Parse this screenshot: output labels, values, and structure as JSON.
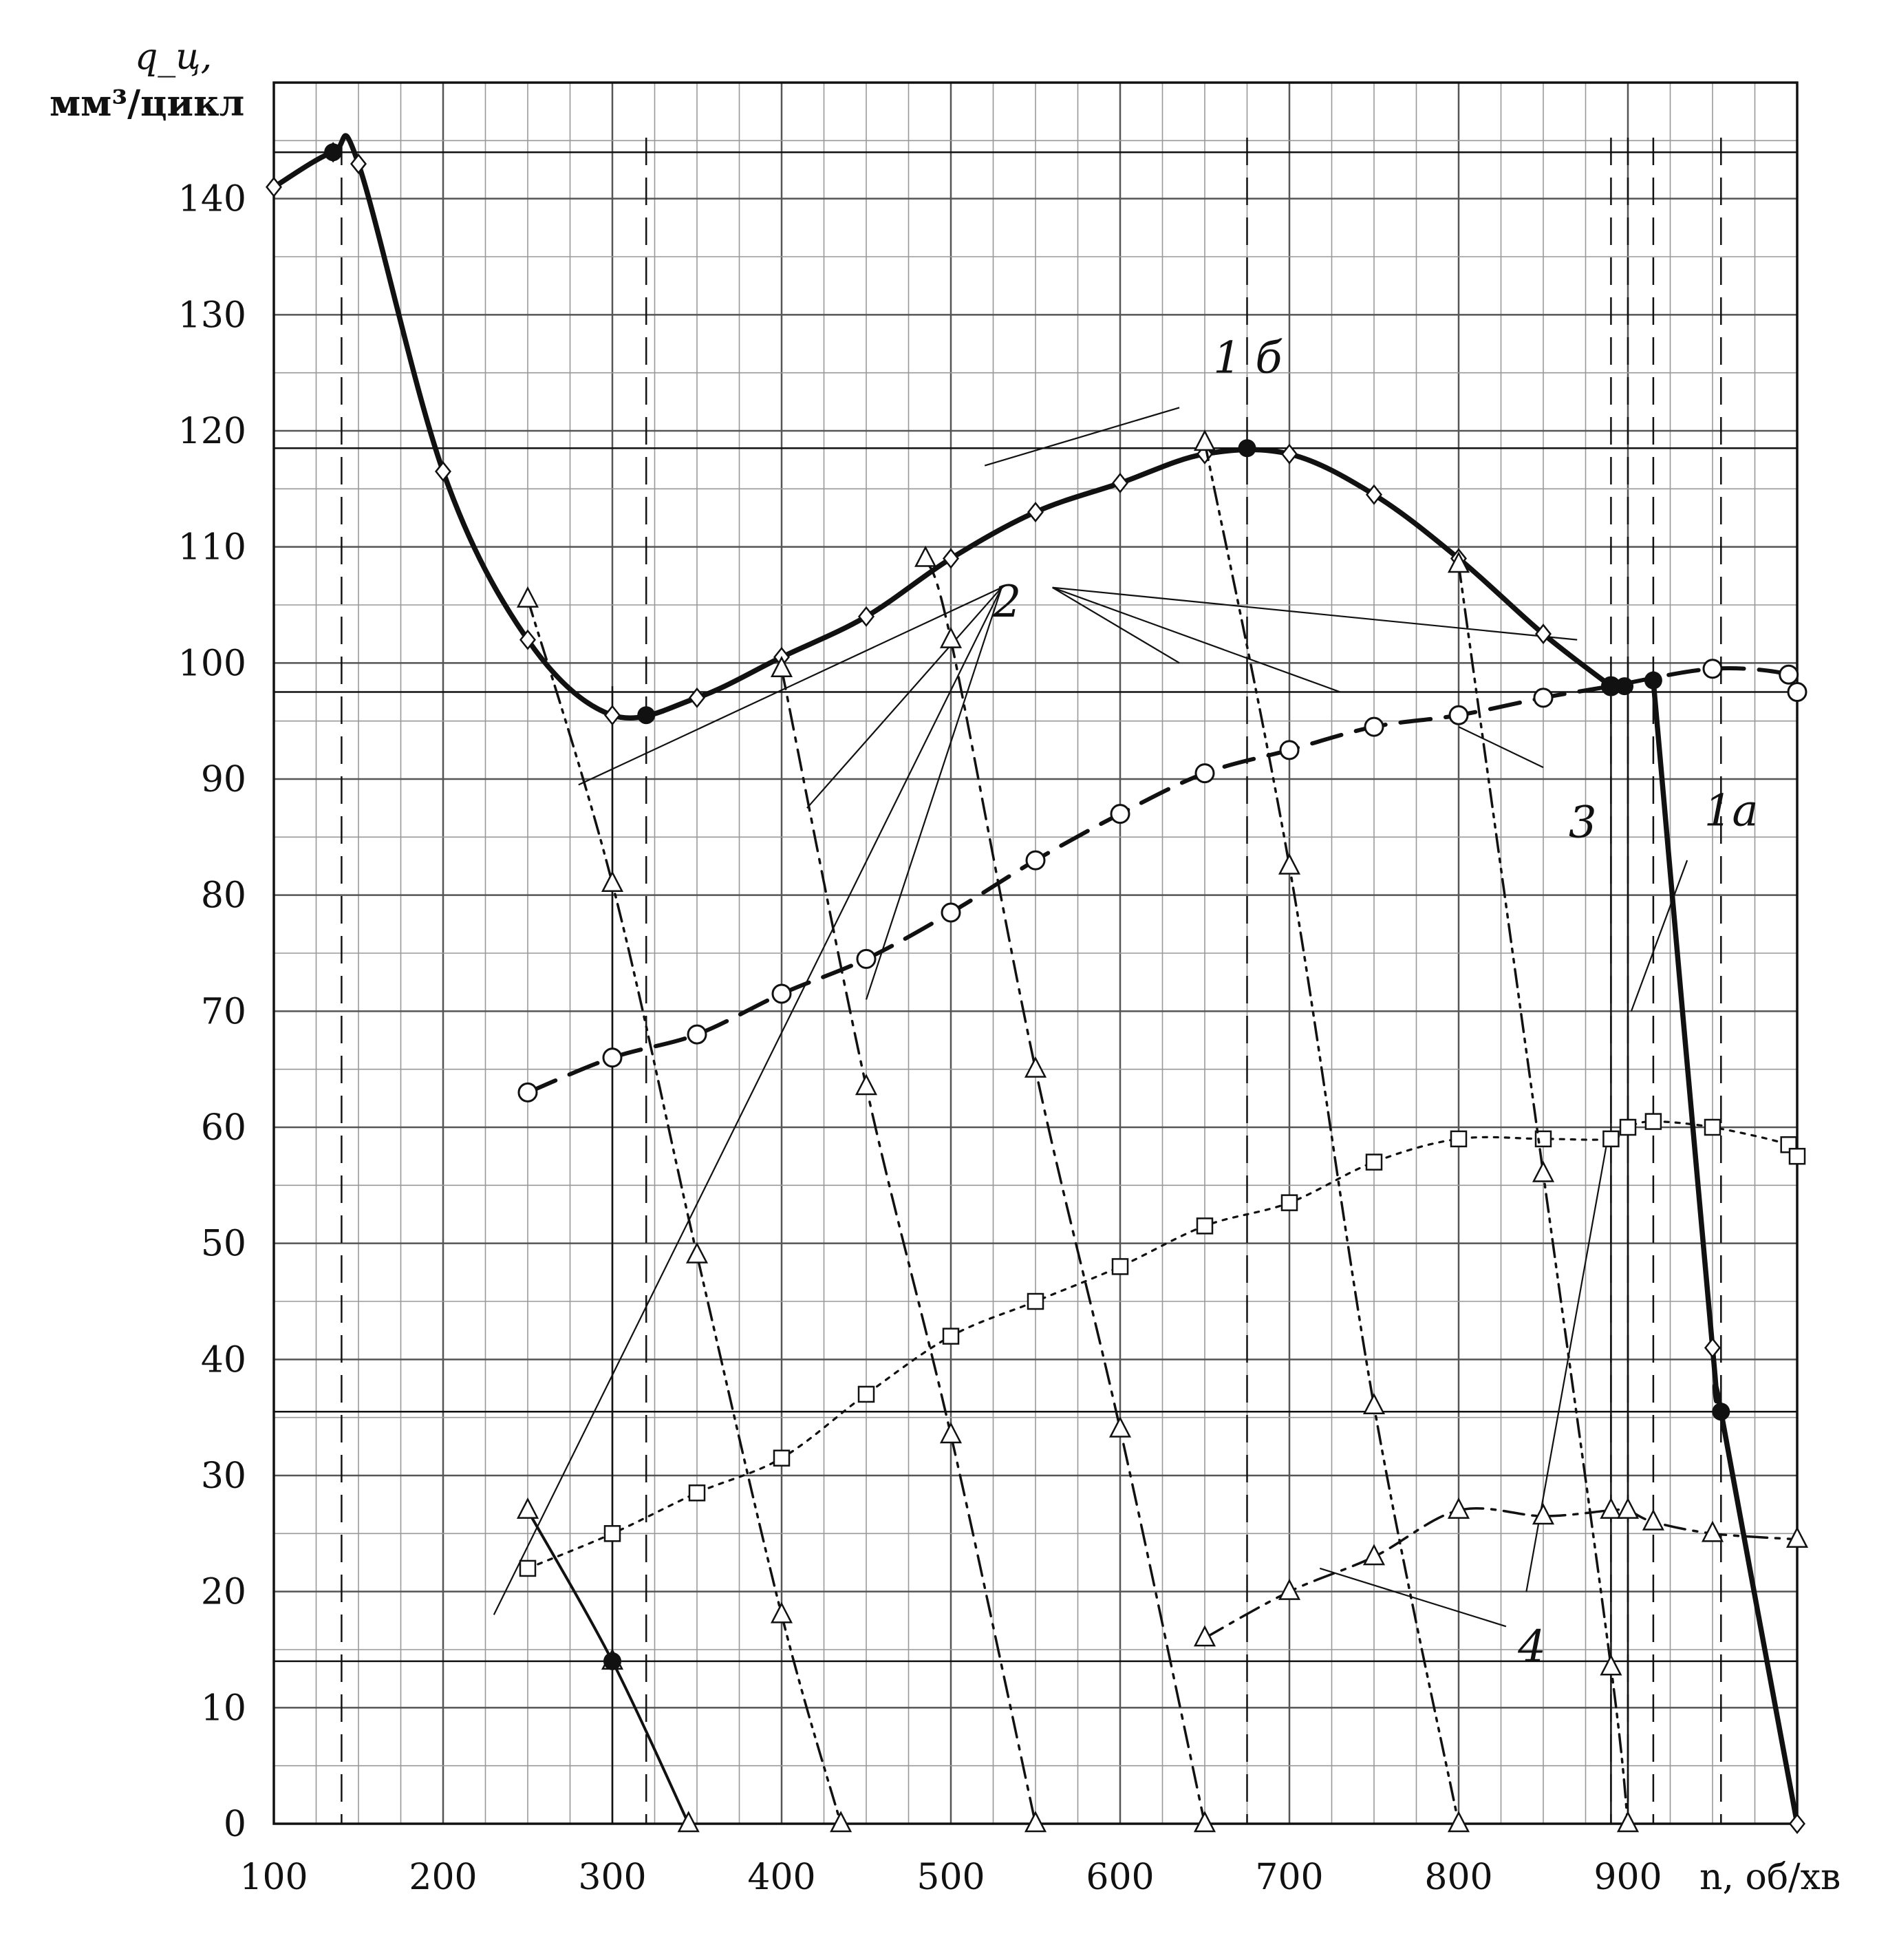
{
  "chart_data": {
    "type": "line",
    "ylabel": "q_ц,",
    "ylabel_unit": "мм³/цикл",
    "ylabel_sub": "ц",
    "xlabel": "n, об/хв",
    "xlim": [
      100,
      1000
    ],
    "ylim": [
      0,
      150
    ],
    "x_ticks": [
      "100",
      "200",
      "300",
      "400",
      "500",
      "600",
      "700",
      "800",
      "900"
    ],
    "y_ticks": [
      "0",
      "10",
      "20",
      "30",
      "40",
      "50",
      "60",
      "70",
      "80",
      "90",
      "100",
      "110",
      "120",
      "130",
      "140"
    ],
    "grid": true,
    "series": [
      {
        "name": "1б",
        "marker": "diamond",
        "style": "solid-thick",
        "points": [
          [
            100,
            141
          ],
          [
            135,
            144
          ],
          [
            150,
            143
          ],
          [
            200,
            116.5
          ],
          [
            250,
            102
          ],
          [
            300,
            95.5
          ],
          [
            350,
            97
          ],
          [
            400,
            100.5
          ],
          [
            450,
            104
          ],
          [
            500,
            109
          ],
          [
            550,
            113
          ],
          [
            600,
            115.5
          ],
          [
            650,
            118
          ],
          [
            700,
            118
          ],
          [
            750,
            114.5
          ],
          [
            800,
            109
          ],
          [
            850,
            102.5
          ],
          [
            890,
            98
          ]
        ]
      },
      {
        "name": "1а",
        "marker": "diamond",
        "style": "solid-thick",
        "points": [
          [
            915,
            98.5
          ],
          [
            950,
            41
          ],
          [
            955,
            35.5
          ],
          [
            1000,
            0
          ]
        ]
      },
      {
        "name": "3",
        "marker": "circle",
        "style": "dashed",
        "points": [
          [
            250,
            63
          ],
          [
            300,
            66
          ],
          [
            350,
            68
          ],
          [
            400,
            71.5
          ],
          [
            450,
            74.5
          ],
          [
            500,
            78.5
          ],
          [
            550,
            83
          ],
          [
            600,
            87
          ],
          [
            650,
            90.5
          ],
          [
            700,
            92.5
          ],
          [
            750,
            94.5
          ],
          [
            800,
            95.5
          ],
          [
            850,
            97
          ],
          [
            890,
            98
          ],
          [
            950,
            99.5
          ],
          [
            995,
            99
          ],
          [
            1000,
            97.5
          ]
        ]
      },
      {
        "name": "4",
        "marker": "square",
        "style": "dotted",
        "points": [
          [
            250,
            22
          ],
          [
            300,
            25
          ],
          [
            350,
            28.5
          ],
          [
            400,
            31.5
          ],
          [
            450,
            37
          ],
          [
            500,
            42
          ],
          [
            550,
            45
          ],
          [
            600,
            48
          ],
          [
            650,
            51.5
          ],
          [
            700,
            53.5
          ],
          [
            750,
            57
          ],
          [
            800,
            59
          ],
          [
            850,
            59
          ],
          [
            890,
            59
          ],
          [
            900,
            60
          ],
          [
            915,
            60.5
          ],
          [
            950,
            60
          ],
          [
            995,
            58.5
          ],
          [
            1000,
            57.5
          ]
        ]
      },
      {
        "name": "4",
        "marker": "triangle",
        "style": "dash-dot",
        "points": [
          [
            650,
            16
          ],
          [
            700,
            20
          ],
          [
            750,
            23
          ],
          [
            800,
            27
          ],
          [
            850,
            26.5
          ],
          [
            890,
            27
          ],
          [
            900,
            27
          ],
          [
            915,
            26
          ],
          [
            950,
            25
          ],
          [
            1000,
            24.5
          ]
        ]
      },
      {
        "name": "2",
        "marker": "triangle",
        "style": "dash-dot-dot",
        "points": [
          [
            250,
            105.5
          ],
          [
            300,
            81
          ],
          [
            350,
            49
          ],
          [
            400,
            18
          ],
          [
            435,
            0
          ]
        ]
      },
      {
        "name": "2",
        "marker": "triangle",
        "style": "dash-dot",
        "points": [
          [
            400,
            99.5
          ],
          [
            450,
            63.5
          ],
          [
            500,
            33.5
          ],
          [
            550,
            0
          ]
        ]
      },
      {
        "name": "2",
        "marker": "triangle",
        "style": "dash-dot",
        "points": [
          [
            485,
            109
          ],
          [
            500,
            102
          ],
          [
            550,
            65
          ],
          [
            600,
            34
          ],
          [
            650,
            0
          ]
        ]
      },
      {
        "name": "2",
        "marker": "triangle",
        "style": "dash-dot-dot",
        "points": [
          [
            650,
            119
          ],
          [
            700,
            82.5
          ],
          [
            750,
            36
          ],
          [
            800,
            0
          ]
        ]
      },
      {
        "name": "2",
        "marker": "triangle",
        "style": "dash-dot-dot",
        "points": [
          [
            800,
            108.5
          ],
          [
            850,
            56
          ],
          [
            890,
            13.5
          ],
          [
            900,
            0
          ]
        ]
      },
      {
        "name": "",
        "marker": "triangle",
        "style": "solid",
        "points": [
          [
            250,
            27
          ],
          [
            300,
            14
          ],
          [
            345,
            0
          ]
        ]
      }
    ],
    "key_points": [
      [
        135,
        144
      ],
      [
        320,
        95.5
      ],
      [
        675,
        118.5
      ],
      [
        890,
        98
      ],
      [
        898,
        98
      ],
      [
        915,
        98.5
      ],
      [
        955,
        35.5
      ],
      [
        300,
        14
      ]
    ],
    "reference_lines": {
      "horizontal": [
        144,
        118.5,
        97.5,
        35.5,
        14
      ],
      "vertical": [
        140,
        320,
        675,
        890,
        900,
        915,
        955
      ],
      "vertical_solid": [
        300,
        890,
        900
      ]
    },
    "labels": [
      {
        "text": "1 б",
        "at": [
          655,
          125
        ]
      },
      {
        "text": "2",
        "at": [
          525,
          104
        ]
      },
      {
        "text": "3",
        "at": [
          865,
          85
        ]
      },
      {
        "text": "1а",
        "at": [
          945,
          86
        ]
      },
      {
        "text": "4",
        "at": [
          835,
          14
        ]
      }
    ],
    "leaders": [
      {
        "label": "1 б",
        "from": [
          635,
          122
        ],
        "to": [
          520,
          117
        ]
      },
      {
        "label": "2",
        "from": [
          530,
          106.5
        ],
        "to": [
          280,
          89.5
        ]
      },
      {
        "label": "2",
        "from": [
          530,
          106.5
        ],
        "to": [
          415,
          87.5
        ]
      },
      {
        "label": "2",
        "from": [
          530,
          106.5
        ],
        "to": [
          450,
          71
        ]
      },
      {
        "label": "2",
        "from": [
          530,
          106.5
        ],
        "to": [
          230,
          18
        ]
      },
      {
        "label": "2",
        "from": [
          560,
          106.5
        ],
        "to": [
          635,
          100
        ]
      },
      {
        "label": "2",
        "from": [
          560,
          106.5
        ],
        "to": [
          730,
          97.5
        ]
      },
      {
        "label": "2",
        "from": [
          560,
          106.5
        ],
        "to": [
          870,
          102
        ]
      },
      {
        "label": "3",
        "from": [
          850,
          91
        ],
        "to": [
          800,
          94.5
        ]
      },
      {
        "label": "1а",
        "from": [
          935,
          83
        ],
        "to": [
          902,
          70
        ]
      },
      {
        "label": "4",
        "from": [
          828,
          17
        ],
        "to": [
          718,
          22
        ]
      },
      {
        "label": "4",
        "from": [
          840,
          20
        ],
        "to": [
          888,
          59
        ]
      }
    ]
  }
}
